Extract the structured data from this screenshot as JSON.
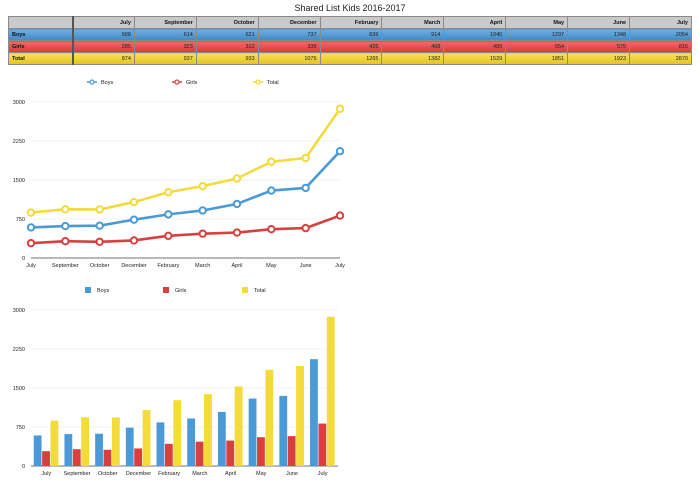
{
  "title": "Shared List Kids 2016-2017",
  "table": {
    "months": [
      "July",
      "September",
      "October",
      "December",
      "February",
      "March",
      "April",
      "May",
      "June",
      "July"
    ],
    "rows": [
      {
        "label": "Boys",
        "values": [
          "588",
          "614",
          "621",
          "737",
          "839",
          "914",
          "1040",
          "1297",
          "1348",
          "2054"
        ]
      },
      {
        "label": "Girls",
        "values": [
          "285",
          "323",
          "312",
          "338",
          "426",
          "468",
          "489",
          "554",
          "575",
          "816"
        ]
      },
      {
        "label": "Total",
        "values": [
          "874",
          "937",
          "933",
          "1075",
          "1265",
          "1382",
          "1529",
          "1851",
          "1923",
          "2870"
        ]
      }
    ]
  },
  "colors": {
    "boys": "#4a9ad8",
    "girls": "#d8403f",
    "total": "#f2db3a"
  },
  "chart_data": [
    {
      "type": "line",
      "categories": [
        "July",
        "September",
        "October",
        "December",
        "February",
        "March",
        "April",
        "May",
        "June",
        "July"
      ],
      "series": [
        {
          "name": "Boys",
          "values": [
            588,
            614,
            621,
            737,
            839,
            914,
            1040,
            1297,
            1348,
            2054
          ]
        },
        {
          "name": "Girls",
          "values": [
            285,
            323,
            312,
            338,
            426,
            468,
            489,
            554,
            575,
            816
          ]
        },
        {
          "name": "Total",
          "values": [
            874,
            937,
            933,
            1075,
            1265,
            1382,
            1529,
            1851,
            1923,
            2870
          ]
        }
      ],
      "yticks": [
        "0",
        "750",
        "1500",
        "2250",
        "3000"
      ],
      "ylim": [
        0,
        3000
      ],
      "legend": "top",
      "grid": true
    },
    {
      "type": "bar",
      "categories": [
        "July",
        "September",
        "October",
        "December",
        "February",
        "March",
        "April",
        "May",
        "June",
        "July"
      ],
      "series": [
        {
          "name": "Boys",
          "values": [
            588,
            614,
            621,
            737,
            839,
            914,
            1040,
            1297,
            1348,
            2054
          ]
        },
        {
          "name": "Girls",
          "values": [
            285,
            323,
            312,
            338,
            426,
            468,
            489,
            554,
            575,
            816
          ]
        },
        {
          "name": "Total",
          "values": [
            874,
            937,
            933,
            1075,
            1265,
            1382,
            1529,
            1851,
            1923,
            2870
          ]
        }
      ],
      "yticks": [
        "0",
        "750",
        "1500",
        "2250",
        "3000"
      ],
      "ylim": [
        0,
        3000
      ],
      "legend": "top",
      "grid": true
    }
  ]
}
